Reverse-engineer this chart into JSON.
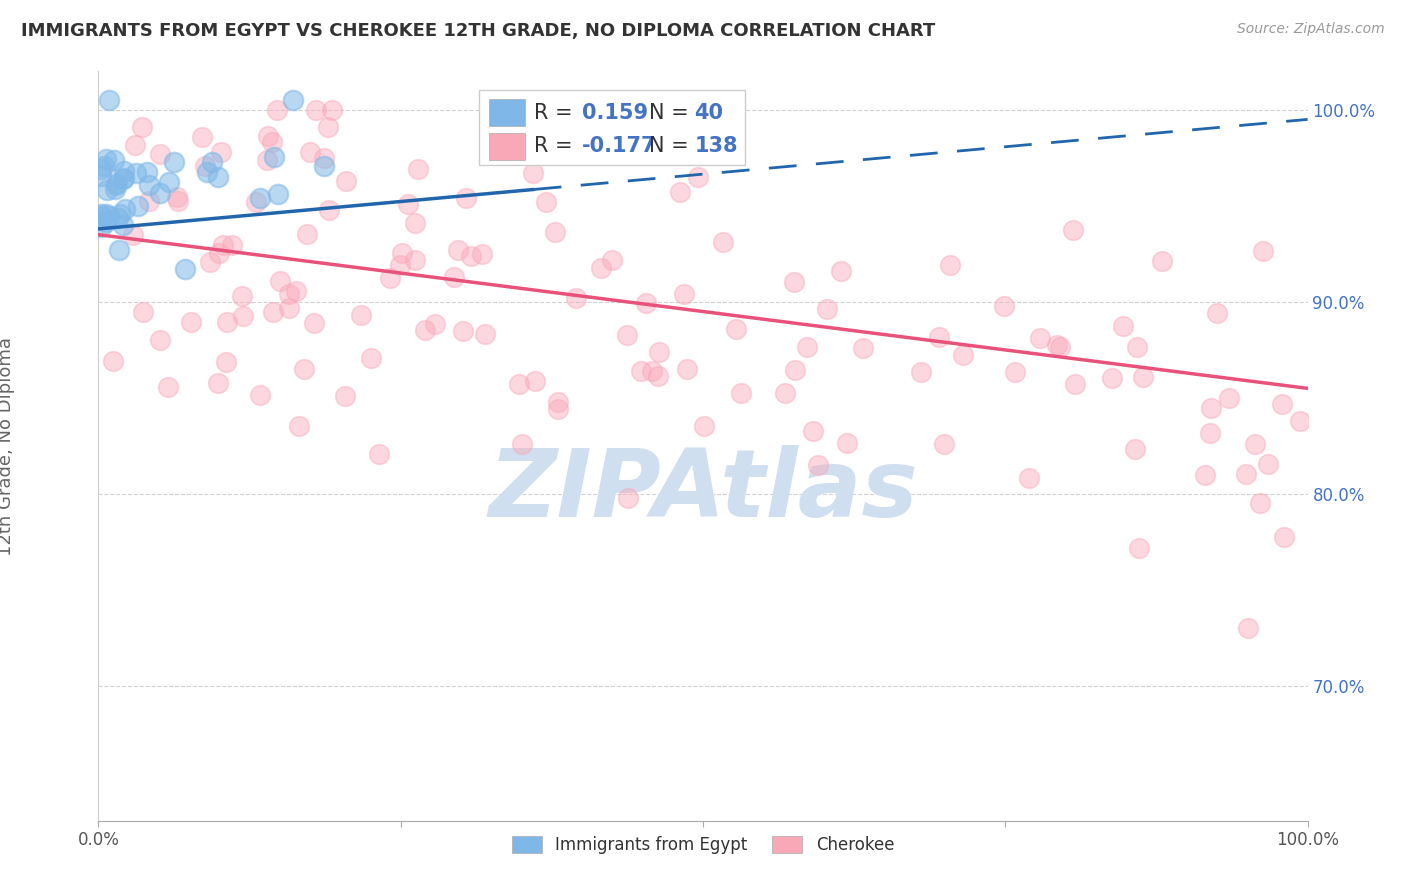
{
  "title": "IMMIGRANTS FROM EGYPT VS CHEROKEE 12TH GRADE, NO DIPLOMA CORRELATION CHART",
  "source": "Source: ZipAtlas.com",
  "ylabel": "12th Grade, No Diploma",
  "legend_label1": "Immigrants from Egypt",
  "legend_label2": "Cherokee",
  "r1": 0.159,
  "n1": 40,
  "r2": -0.177,
  "n2": 138,
  "blue_scatter_color": "#7fb8e8",
  "pink_scatter_color": "#f9a8b8",
  "blue_line_color": "#2166ac",
  "pink_line_color": "#e8527a",
  "watermark_color": "#d0dff0",
  "watermark_text": "ZIPAtlas",
  "xlim": [
    0.0,
    100.0
  ],
  "ylim": [
    63.0,
    102.0
  ],
  "ytick_positions": [
    70.0,
    80.0,
    90.0,
    100.0
  ],
  "ytick_labels": [
    "70.0%",
    "80.0%",
    "90.0%",
    "100.0%"
  ],
  "background_color": "#ffffff",
  "grid_color": "#cccccc",
  "blue_trend_start_x": 0.0,
  "blue_trend_end_x": 100.0,
  "blue_trend_start_y": 93.8,
  "blue_trend_end_y": 99.5,
  "blue_solid_end_x": 36.0,
  "pink_trend_start_x": 0.0,
  "pink_trend_end_x": 100.0,
  "pink_trend_start_y": 93.5,
  "pink_trend_end_y": 85.5,
  "seed": 17
}
